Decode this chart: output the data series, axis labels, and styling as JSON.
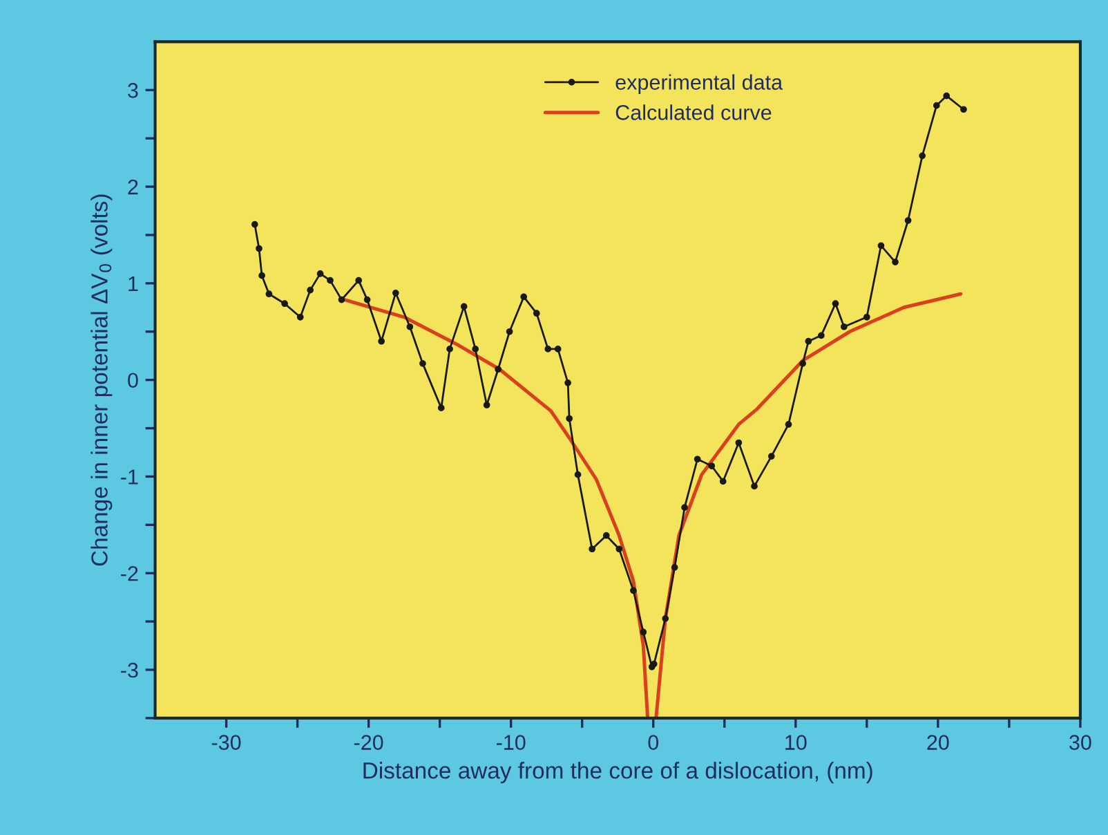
{
  "chart_data": {
    "type": "line",
    "xlabel": "Distance away from the core of a dislocation, (nm)",
    "ylabel": "Change in inner potential ΔV$_{0}$ (volts)",
    "xlim": [
      -35,
      30
    ],
    "xticks": [
      -30,
      {
        "value": -25,
        "label": null
      },
      -20,
      {
        "value": -15,
        "label": null
      },
      -10,
      {
        "value": -5,
        "label": null
      },
      0,
      {
        "value": 5,
        "label": null
      },
      10,
      {
        "value": 15,
        "label": null
      },
      20,
      {
        "value": 25,
        "label": null
      },
      30
    ],
    "ylim": [
      -3.5,
      3.5
    ],
    "yticks": [
      {
        "value": -3.5,
        "label": null
      },
      -3,
      {
        "value": -2.5,
        "label": null
      },
      -2,
      {
        "value": -1.5,
        "label": null
      },
      -1,
      {
        "value": -0.5,
        "label": null
      },
      0,
      {
        "value": 0.5,
        "label": null
      },
      1,
      {
        "value": 1.5,
        "label": null
      },
      2,
      {
        "value": 2.5,
        "label": null
      },
      3
    ],
    "grid": false,
    "legend": "top",
    "series": [
      {
        "name": "experimental data",
        "color": "#1a1a14",
        "marker": "circle",
        "x": [
          -28.0,
          -27.7,
          -27.5,
          -27.0,
          -25.9,
          -24.8,
          -24.1,
          -23.4,
          -22.7,
          -21.9,
          -20.7,
          -20.1,
          -19.1,
          -18.1,
          -17.1,
          -16.2,
          -14.9,
          -14.3,
          -13.3,
          -12.5,
          -11.7,
          -10.9,
          -10.1,
          -9.1,
          -8.2,
          -7.4,
          -6.7,
          -6.0,
          -5.9,
          -5.3,
          -4.3,
          -3.3,
          -2.4,
          -1.4,
          -0.7,
          -0.1,
          0.05,
          0.85,
          1.5,
          2.2,
          3.1,
          4.1,
          4.9,
          6.0,
          7.1,
          8.3,
          9.5,
          10.5,
          10.9,
          11.8,
          12.8,
          13.4,
          15.0,
          16.0,
          17.0,
          17.9,
          18.9,
          19.9,
          20.6,
          21.8
        ],
        "values": [
          1.61,
          1.36,
          1.08,
          0.89,
          0.79,
          0.65,
          0.93,
          1.1,
          1.03,
          0.83,
          1.03,
          0.83,
          0.4,
          0.9,
          0.55,
          0.17,
          -0.29,
          0.32,
          0.76,
          0.32,
          -0.26,
          0.11,
          0.5,
          0.86,
          0.69,
          0.32,
          0.32,
          -0.03,
          -0.4,
          -0.98,
          -1.75,
          -1.61,
          -1.75,
          -2.18,
          -2.61,
          -2.97,
          -2.94,
          -2.47,
          -1.94,
          -1.32,
          -0.82,
          -0.89,
          -1.05,
          -0.65,
          -1.1,
          -0.79,
          -0.46,
          0.17,
          0.4,
          0.46,
          0.79,
          0.55,
          0.65,
          1.39,
          1.22,
          1.65,
          2.32,
          2.84,
          2.94,
          2.8
        ]
      },
      {
        "name": "Calculated curve",
        "color": "#d9401f",
        "marker": "none",
        "x": [
          -21.7,
          -17.5,
          -13.7,
          -10.8,
          -7.2,
          -5.9,
          -4.0,
          -2.4,
          -1.4,
          -0.7,
          -0.4,
          null,
          0.2,
          0.85,
          1.8,
          3.4,
          6.0,
          7.3,
          10.5,
          13.8,
          17.6,
          21.6
        ],
        "values": [
          0.83,
          0.65,
          0.36,
          0.11,
          -0.32,
          -0.6,
          -1.03,
          -1.61,
          -2.08,
          -2.75,
          -3.49,
          null,
          -3.49,
          -2.47,
          -1.61,
          -0.98,
          -0.46,
          -0.3,
          0.2,
          0.5,
          0.75,
          0.89
        ]
      }
    ]
  }
}
